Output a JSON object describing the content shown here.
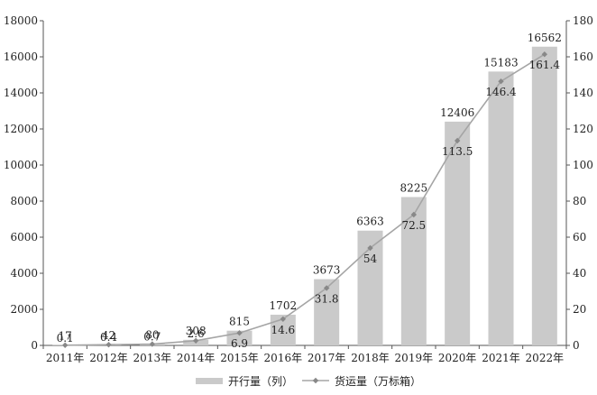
{
  "chart_data": {
    "type": "bar",
    "categories": [
      "2011年",
      "2012年",
      "2013年",
      "2014年",
      "2015年",
      "2016年",
      "2017年",
      "2018年",
      "2019年",
      "2020年",
      "2021年",
      "2022年"
    ],
    "series": [
      {
        "name": "开行量（列）",
        "type": "bar",
        "axis": "left",
        "values": [
          17,
          42,
          80,
          308,
          815,
          1702,
          3673,
          6363,
          8225,
          12406,
          15183,
          16562
        ]
      },
      {
        "name": "货运量（万标箱）",
        "type": "line",
        "axis": "right",
        "values": [
          0.1,
          0.4,
          0.7,
          2.6,
          6.9,
          14.6,
          31.8,
          54,
          72.5,
          113.5,
          146.4,
          161.4
        ]
      }
    ],
    "y_left": {
      "min": 0,
      "max": 18000,
      "ticks": [
        0,
        2000,
        4000,
        6000,
        8000,
        10000,
        12000,
        14000,
        16000,
        18000
      ]
    },
    "y_right": {
      "min": 0,
      "max": 180,
      "ticks": [
        0,
        20,
        40,
        60,
        80,
        100,
        120,
        140,
        160,
        180
      ]
    },
    "grid": false,
    "legend_position": "bottom",
    "colors": {
      "bar": "#cacaca",
      "line": "#a5a5a5",
      "marker": "#888888",
      "axis": "#555555"
    }
  }
}
